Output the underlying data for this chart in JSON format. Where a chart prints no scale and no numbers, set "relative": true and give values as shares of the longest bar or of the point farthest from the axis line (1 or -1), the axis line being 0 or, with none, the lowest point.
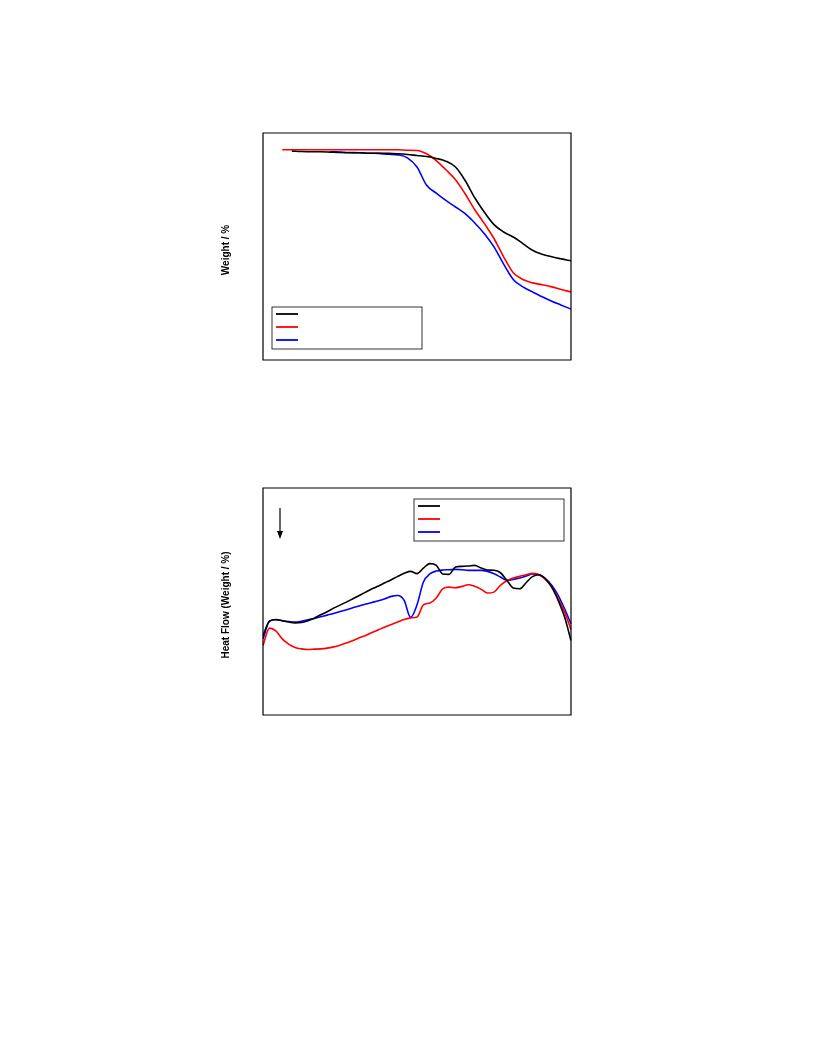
{
  "chart_data": [
    {
      "type": "line",
      "ylabel": "Weight / %",
      "relative": true,
      "marker": "none",
      "line_style": "solid",
      "categories": [
        null,
        null,
        null,
        null,
        null,
        null,
        null,
        null,
        null,
        null,
        null,
        null,
        null,
        null,
        null,
        null,
        null,
        null,
        null,
        null,
        null,
        null,
        null,
        null,
        null,
        null,
        null,
        null,
        null,
        null,
        null,
        null,
        null
      ],
      "series": [
        {
          "color": "#000000",
          "values": [
            null,
            null,
            null,
            0.994,
            0.992,
            0.991,
            0.991,
            0.989,
            0.987,
            0.986,
            0.986,
            0.984,
            0.984,
            0.983,
            0.981,
            0.978,
            0.973,
            0.968,
            0.959,
            0.946,
            0.918,
            0.854,
            0.772,
            0.703,
            0.644,
            0.609,
            0.585,
            0.554,
            0.522,
            0.503,
            0.491,
            0.481,
            0.472
          ]
        },
        {
          "color": "#ff0000",
          "values": [
            null,
            null,
            1.0,
            1.0,
            1.0,
            1.0,
            1.0,
            1.0,
            1.0,
            1.0,
            1.0,
            1.0,
            1.0,
            1.0,
            1.0,
            0.998,
            0.997,
            0.981,
            0.949,
            0.905,
            0.858,
            0.791,
            0.715,
            0.649,
            0.578,
            0.491,
            0.415,
            0.383,
            0.367,
            0.358,
            0.348,
            0.335,
            0.324
          ]
        },
        {
          "color": "#0000ff",
          "values": [
            null,
            null,
            null,
            null,
            null,
            null,
            null,
            0.991,
            0.989,
            0.987,
            0.986,
            0.984,
            0.983,
            0.979,
            0.976,
            0.962,
            0.918,
            0.831,
            0.794,
            0.759,
            0.728,
            0.696,
            0.652,
            0.601,
            0.538,
            0.456,
            0.383,
            0.348,
            0.324,
            0.301,
            0.28,
            0.261,
            0.242
          ]
        }
      ]
    },
    {
      "type": "line",
      "ylabel": "Heat Flow (Weight / %)",
      "relative": true,
      "marker": "none",
      "line_style": "solid",
      "categories": [
        null,
        null,
        null,
        null,
        null,
        null,
        null,
        null,
        null,
        null,
        null,
        null,
        null,
        null,
        null,
        null,
        null,
        null,
        null,
        null,
        null,
        null,
        null,
        null,
        null,
        null,
        null,
        null,
        null,
        null,
        null,
        null,
        null,
        null,
        null,
        null,
        null,
        null,
        null,
        null,
        null,
        null,
        null,
        null,
        null,
        null,
        null,
        null,
        null
      ],
      "series": [
        {
          "color": "#000000",
          "values": [
            0.525,
            0.62,
            0.631,
            0.623,
            0.614,
            0.609,
            0.611,
            0.623,
            0.64,
            0.662,
            0.682,
            0.706,
            0.726,
            0.746,
            0.768,
            0.79,
            0.812,
            0.834,
            0.852,
            0.874,
            0.894,
            0.916,
            0.936,
            0.949,
            0.934,
            0.971,
            1.0,
            0.989,
            0.932,
            0.929,
            0.978,
            0.982,
            0.985,
            0.989,
            0.971,
            0.958,
            0.956,
            0.94,
            0.89,
            0.839,
            0.834,
            0.874,
            0.914,
            0.927,
            0.901,
            0.845,
            0.757,
            0.647,
            0.492
          ]
        },
        {
          "color": "#ff0000",
          "values": [
            0.459,
            0.574,
            0.556,
            0.503,
            0.468,
            0.446,
            0.437,
            0.433,
            0.435,
            0.437,
            0.442,
            0.45,
            0.461,
            0.475,
            0.492,
            0.51,
            0.525,
            0.545,
            0.563,
            0.581,
            0.598,
            0.614,
            0.631,
            0.642,
            0.647,
            0.728,
            0.74,
            0.773,
            0.834,
            0.845,
            0.841,
            0.85,
            0.861,
            0.85,
            0.83,
            0.806,
            0.812,
            0.857,
            0.887,
            0.905,
            0.916,
            0.927,
            0.936,
            0.927,
            0.896,
            0.845,
            0.768,
            0.68,
            0.565
          ]
        },
        {
          "color": "#0000ff",
          "values": [
            0.503,
            0.618,
            0.629,
            0.623,
            0.618,
            0.614,
            0.62,
            0.629,
            0.638,
            0.649,
            0.66,
            0.671,
            0.684,
            0.695,
            0.709,
            0.72,
            0.733,
            0.744,
            0.755,
            0.768,
            0.784,
            0.79,
            0.757,
            0.645,
            0.728,
            0.879,
            0.932,
            0.951,
            0.958,
            0.96,
            0.962,
            0.96,
            0.956,
            0.956,
            0.956,
            0.949,
            0.934,
            0.912,
            0.89,
            0.896,
            0.905,
            0.918,
            0.932,
            0.927,
            0.901,
            0.857,
            0.79,
            0.702,
            0.603
          ]
        }
      ]
    }
  ]
}
